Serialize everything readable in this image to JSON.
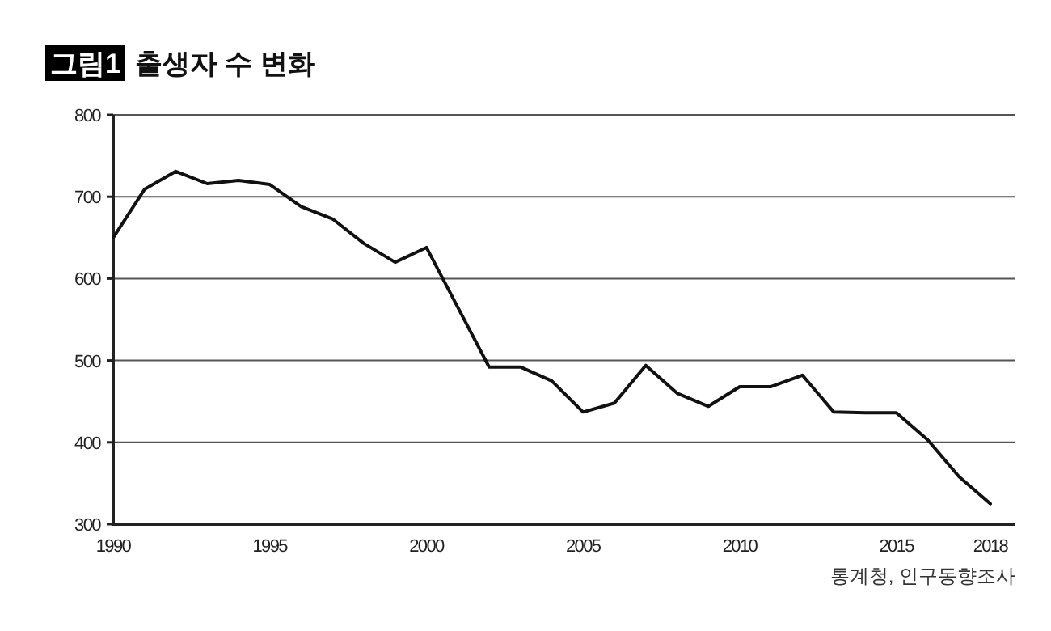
{
  "chart_data": {
    "type": "line",
    "title": "출생자 수 변화",
    "annotations": [
      "그림1",
      "통계청, 인구동향조사"
    ],
    "x": [
      1990,
      1991,
      1992,
      1993,
      1994,
      1995,
      1996,
      1997,
      1998,
      1999,
      2000,
      2001,
      2002,
      2003,
      2004,
      2005,
      2006,
      2007,
      2008,
      2009,
      2010,
      2011,
      2012,
      2013,
      2014,
      2015,
      2016,
      2017,
      2018
    ],
    "series": [
      {
        "color": "#111111",
        "values": [
          650,
          709,
          731,
          716,
          720,
          715,
          688,
          673,
          643,
          620,
          638,
          565,
          492,
          492,
          475,
          437,
          448,
          494,
          460,
          444,
          468,
          468,
          482,
          437,
          436,
          436,
          403,
          358,
          325
        ]
      }
    ],
    "xlim": [
      1990,
      2018.8
    ],
    "xticks": [
      1990,
      1995,
      2000,
      2005,
      2010,
      2015,
      2018
    ],
    "ylim": [
      300,
      800
    ],
    "yticks": [
      300,
      400,
      500,
      600,
      700,
      800
    ],
    "grid": "y",
    "marker": "none",
    "line_style": "solid"
  }
}
